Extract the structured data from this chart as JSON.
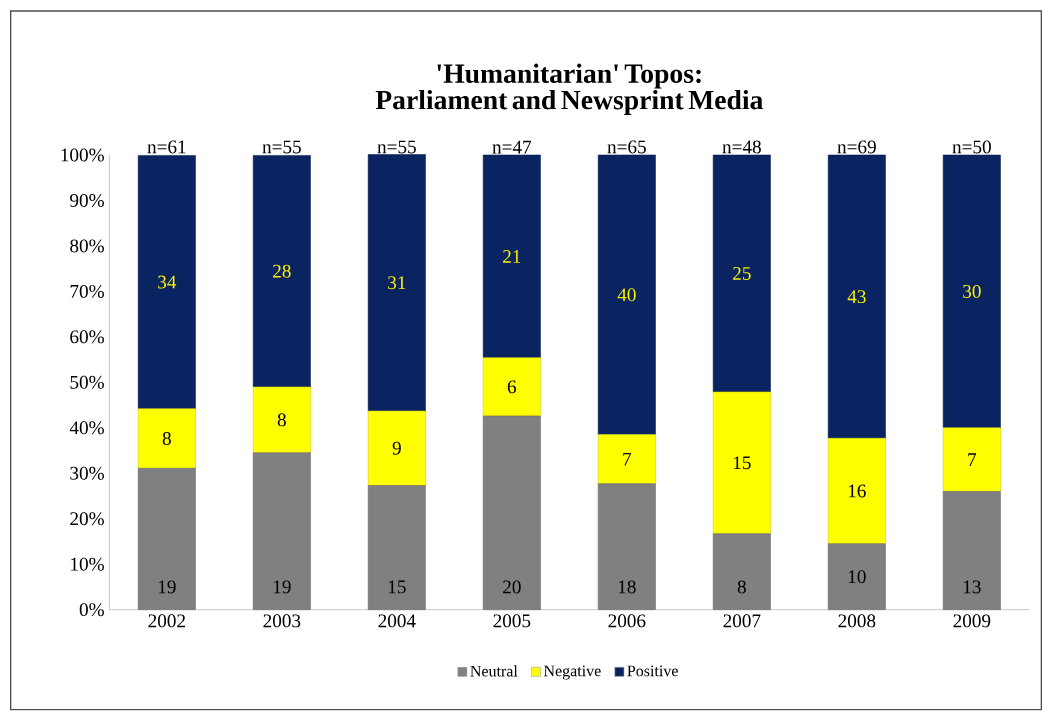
{
  "chart_data": {
    "type": "bar",
    "stacked": true,
    "title": "'Humanitarian' Topos: Parliament and Newsprint Media",
    "categories": [
      "2002",
      "2003",
      "2004",
      "2005",
      "2006",
      "2007",
      "2008",
      "2009"
    ],
    "series": [
      {
        "name": "Neutral",
        "color": "#808080",
        "values": [
          31.1,
          34.5,
          27.3,
          42.6,
          27.7,
          16.7,
          14.5,
          26.0
        ]
      },
      {
        "name": "Negative",
        "color": "#ffff00",
        "values": [
          13.1,
          14.5,
          16.4,
          12.8,
          10.8,
          31.2,
          23.2,
          14.0
        ]
      },
      {
        "name": "Positive",
        "color": "#0a2461",
        "values": [
          55.7,
          50.9,
          56.4,
          44.6,
          61.5,
          52.1,
          62.3,
          60.0
        ]
      }
    ],
    "annotations": [
      "19",
      "19",
      "15",
      "20",
      "18",
      "8",
      "10",
      "13",
      "8",
      "8",
      "9",
      "6",
      "7",
      "15",
      "16",
      "7",
      "34",
      "28",
      "31",
      "21",
      "40",
      "25",
      "43",
      "30",
      "n=61",
      "n=55",
      "n=55",
      "n=47",
      "n=65",
      "n=48",
      "n=69",
      "n=50"
    ],
    "ylim": [
      0,
      100
    ],
    "yticks": [
      {
        "value": 0,
        "label": "0%"
      },
      {
        "value": 10,
        "label": "10%"
      },
      {
        "value": 20,
        "label": "20%"
      },
      {
        "value": 30,
        "label": "30%"
      },
      {
        "value": 40,
        "label": "40%"
      },
      {
        "value": 50,
        "label": "50%"
      },
      {
        "value": 60,
        "label": "60%"
      },
      {
        "value": 70,
        "label": "70%"
      },
      {
        "value": 80,
        "label": "80%"
      },
      {
        "value": 90,
        "label": "90%"
      },
      {
        "value": 100,
        "label": "100%"
      }
    ],
    "legend": "bottom"
  }
}
